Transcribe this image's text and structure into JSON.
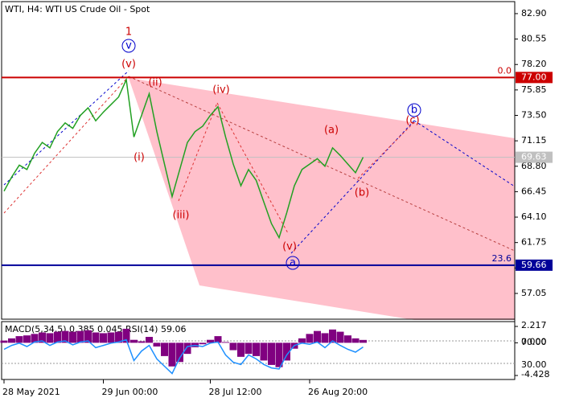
{
  "chart_data": [
    {
      "type": "line",
      "title": "WTI, H4:  WTI US Crude Oil - Spot",
      "color": "#22a022",
      "categories": [
        "28 May 2021",
        null,
        null,
        null,
        null,
        null,
        null,
        null,
        null,
        null,
        null,
        null,
        null,
        "29 Jun 00:00",
        null,
        null,
        null,
        null,
        null,
        null,
        null,
        null,
        null,
        null,
        null,
        null,
        null,
        "28 Jul 12:00",
        null,
        null,
        null,
        null,
        null,
        null,
        null,
        null,
        null,
        null,
        null,
        null,
        "26 Aug 20:00",
        null,
        null,
        null,
        null,
        null,
        null,
        null
      ],
      "values": [
        66.5,
        67.8,
        68.9,
        68.5,
        70.0,
        71.0,
        70.5,
        72.0,
        72.8,
        72.3,
        73.5,
        74.2,
        73.0,
        73.8,
        74.5,
        75.2,
        76.8,
        71.5,
        73.5,
        75.5,
        72.0,
        69.0,
        66.0,
        68.5,
        71.0,
        72.0,
        72.5,
        73.5,
        74.3,
        71.5,
        69.0,
        67.0,
        68.5,
        67.5,
        65.5,
        63.5,
        62.2,
        64.5,
        67.0,
        68.5,
        69.0,
        69.5,
        68.8,
        70.5,
        69.8,
        69.0,
        68.2,
        69.63
      ],
      "ylim": [
        54.67,
        84.01
      ],
      "yticks": [
        {
          "value": 82.9,
          "label": "82.90"
        },
        {
          "value": 80.55,
          "label": "80.55"
        },
        {
          "value": 78.2,
          "label": "78.20"
        },
        {
          "value": 75.85,
          "label": "75.85"
        },
        {
          "value": 73.5,
          "label": "73.50"
        },
        {
          "value": 71.15,
          "label": "71.15"
        },
        {
          "value": 68.8,
          "label": "68.80"
        },
        {
          "value": 66.45,
          "label": "66.45"
        },
        {
          "value": 64.1,
          "label": "64.10"
        },
        {
          "value": 61.75,
          "label": "61.75"
        },
        {
          "value": 59.4,
          "label": "59.40"
        },
        {
          "value": 57.05,
          "label": "57.05"
        }
      ],
      "levels": [
        {
          "value": 77.0,
          "label": "77.00",
          "fib": "0.0",
          "color": "#cc0000"
        },
        {
          "value": 59.66,
          "label": "59.66",
          "fib": "23.6",
          "color": "#000099"
        },
        {
          "value": 69.63,
          "label": "69.63",
          "color": "#c0c0c0"
        }
      ],
      "annotations": [
        "1",
        "v",
        "(v)",
        "(ii)",
        "(iv)",
        "(i)",
        "(iii)",
        "(v)",
        "a",
        "(a)",
        "(b)",
        "b",
        "(c)"
      ]
    },
    {
      "type": "macd",
      "title": "MACD(5,34,5) 0.385 0.045 RSI(14) 59.06",
      "series": [
        {
          "color": "#800080",
          "values": [
            0.3,
            0.6,
            0.9,
            1.0,
            1.2,
            1.4,
            1.3,
            1.5,
            1.6,
            1.5,
            1.6,
            1.7,
            1.4,
            1.3,
            1.4,
            1.5,
            1.9,
            0.4,
            0.2,
            0.8,
            -0.5,
            -1.8,
            -3.2,
            -2.6,
            -1.5,
            -0.6,
            -0.2,
            0.4,
            0.9,
            0.1,
            -1.0,
            -1.9,
            -1.5,
            -1.8,
            -2.4,
            -3.0,
            -3.3,
            -2.4,
            -0.8,
            0.6,
            1.2,
            1.6,
            1.3,
            1.8,
            1.5,
            1.0,
            0.6,
            0.385
          ]
        },
        {
          "color": "#1e90ff",
          "axis": "y2",
          "values": [
            55,
            62,
            66,
            60,
            68,
            70,
            62,
            68,
            70,
            63,
            68,
            70,
            58,
            62,
            66,
            68,
            72,
            35,
            52,
            62,
            38,
            25,
            12,
            40,
            60,
            62,
            60,
            66,
            68,
            45,
            32,
            28,
            45,
            38,
            28,
            22,
            20,
            45,
            62,
            66,
            64,
            68,
            58,
            70,
            62,
            55,
            50,
            59.06
          ]
        }
      ],
      "ylim": [
        -4.97,
        2.87
      ],
      "yticks": [
        {
          "value": 2.217,
          "label": "2.217"
        },
        {
          "value": 0,
          "label": "0.000"
        },
        {
          "value": -4.428,
          "label": "-4.428"
        }
      ],
      "y2lim": [
        1.4,
        104.3
      ],
      "y2ticks": [
        {
          "value": 70,
          "label": "70.00"
        },
        {
          "value": 30,
          "label": "30.00"
        }
      ]
    }
  ]
}
